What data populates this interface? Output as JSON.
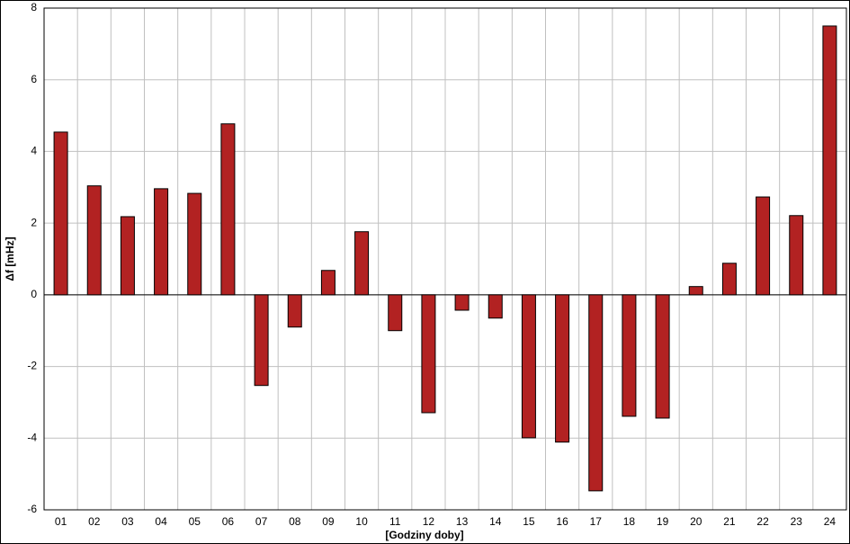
{
  "chart_data": {
    "type": "bar",
    "x_label": "[Godziny doby]",
    "y_label": "Δf [mHz]",
    "categories": [
      "01",
      "02",
      "03",
      "04",
      "05",
      "06",
      "07",
      "08",
      "09",
      "10",
      "11",
      "12",
      "13",
      "14",
      "15",
      "16",
      "17",
      "18",
      "19",
      "20",
      "21",
      "22",
      "23",
      "24"
    ],
    "values": [
      4.54,
      3.04,
      2.18,
      2.96,
      2.83,
      4.77,
      -2.53,
      -0.9,
      0.68,
      1.76,
      -1.0,
      -3.29,
      -0.43,
      -0.65,
      -3.99,
      -4.11,
      -5.47,
      -3.39,
      -3.44,
      0.23,
      0.88,
      2.73,
      2.21,
      7.5
    ],
    "color": "#b22222",
    "ylim": [
      -6,
      8
    ],
    "yticks": [
      -6,
      -4,
      -2,
      0,
      2,
      4,
      6,
      8
    ],
    "grid": true
  }
}
